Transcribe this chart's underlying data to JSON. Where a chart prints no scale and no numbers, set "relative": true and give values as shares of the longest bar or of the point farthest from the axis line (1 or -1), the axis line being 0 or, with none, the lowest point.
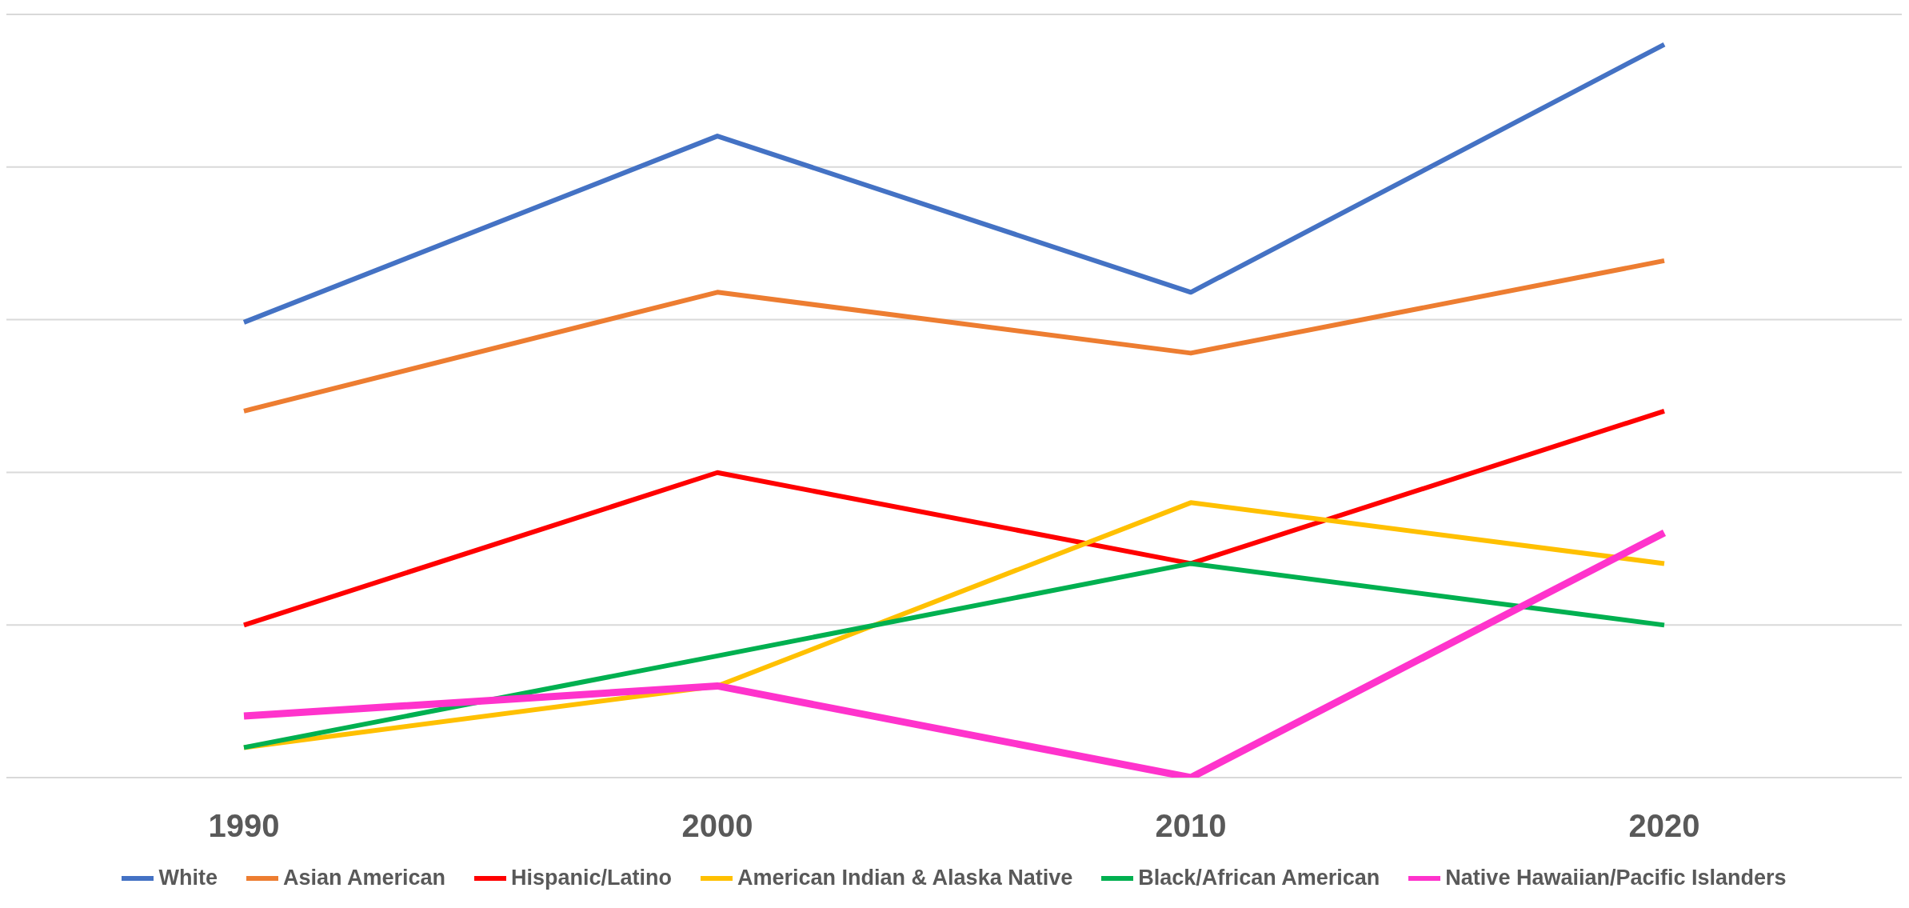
{
  "chart_data": {
    "type": "line",
    "relative": true,
    "categories": [
      "1990",
      "2000",
      "2010",
      "2020"
    ],
    "series": [
      {
        "name": "White",
        "color": "#4472c4",
        "values": [
          0.621,
          0.875,
          0.662,
          1
        ]
      },
      {
        "name": "Asian American",
        "color": "#ed7d31",
        "values": [
          0.5,
          0.662,
          0.579,
          0.705
        ]
      },
      {
        "name": "Hispanic/Latino",
        "color": "#ff0000",
        "values": [
          0.208,
          0.416,
          0.292,
          0.5
        ]
      },
      {
        "name": "American Indian & Alaska Native",
        "color": "#ffc000",
        "values": [
          0.041,
          0.125,
          0.375,
          0.292
        ]
      },
      {
        "name": "Black/African American",
        "color": "#00b050",
        "values": [
          0.041,
          0.166,
          0.292,
          0.208
        ]
      },
      {
        "name": "Native Hawaiian/Pacific Islanders",
        "color": "#ff33cc",
        "values": [
          0.084,
          0.125,
          0,
          0.334
        ]
      }
    ],
    "grid": "y",
    "legend": "bottom",
    "marker": "none",
    "line_style": "solid"
  }
}
